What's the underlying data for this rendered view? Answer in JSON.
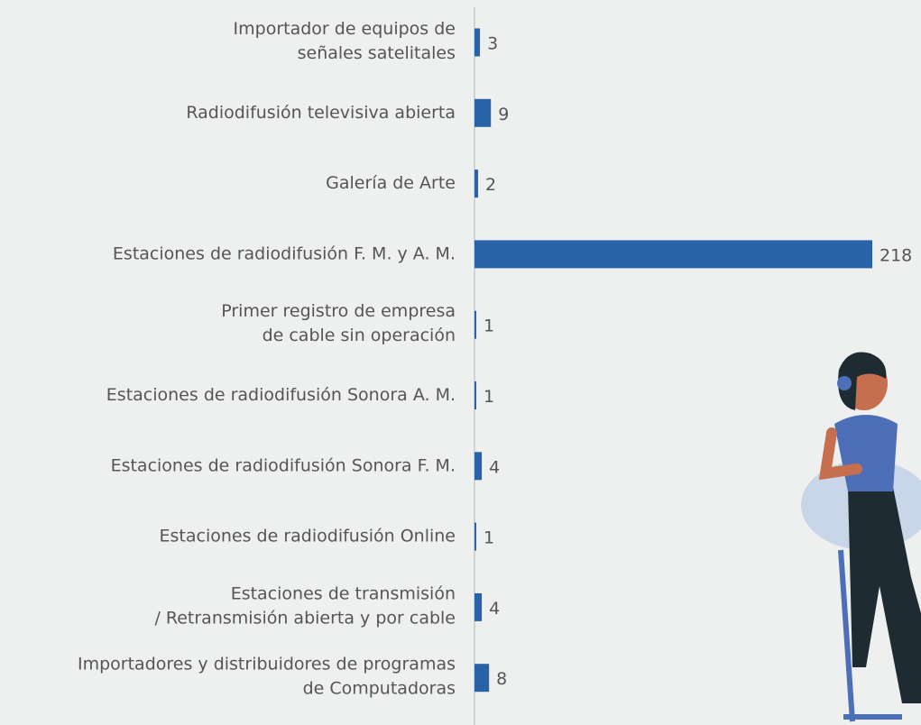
{
  "chart_data": {
    "type": "bar",
    "orientation": "horizontal",
    "categories": [
      [
        "Importador de equipos de",
        "señales satelitales"
      ],
      [
        "Radiodifusión televisiva abierta"
      ],
      [
        "Galería de Arte"
      ],
      [
        "Estaciones de radiodifusión F. M. y A. M."
      ],
      [
        "Primer registro de empresa",
        "de cable sin operación"
      ],
      [
        "Estaciones de radiodifusión Sonora A. M."
      ],
      [
        "Estaciones de radiodifusión Sonora F. M."
      ],
      [
        "Estaciones de radiodifusión Online"
      ],
      [
        "Estaciones de transmisión",
        "/ Retransmisión abierta y por cable"
      ],
      [
        "Importadores y distribuidores de programas",
        "de Computadoras"
      ]
    ],
    "values": [
      3,
      9,
      2,
      218,
      1,
      1,
      4,
      1,
      4,
      8
    ],
    "color": "#2763a6"
  }
}
